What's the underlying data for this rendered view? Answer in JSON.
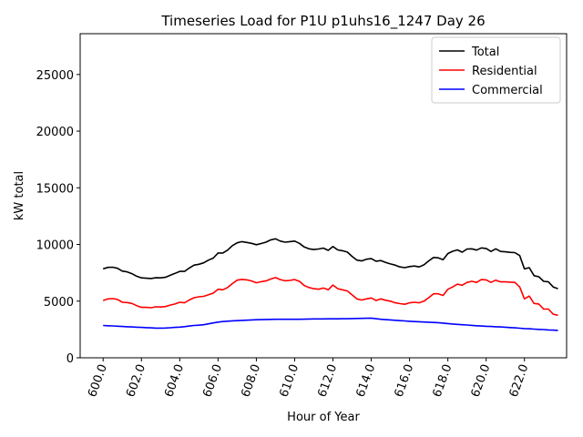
{
  "chart_data": {
    "type": "line",
    "title": "Timeseries Load for P1U p1uhs16_1247  Day 26",
    "xlabel": "Hour of Year",
    "ylabel": "kW total",
    "xlim": [
      598.8,
      624.2
    ],
    "ylim": [
      0,
      28600
    ],
    "xticks": [
      600,
      602,
      604,
      606,
      608,
      610,
      612,
      614,
      616,
      618,
      620,
      622
    ],
    "xtick_labels": [
      "600.0",
      "602.0",
      "604.0",
      "606.0",
      "608.0",
      "610.0",
      "612.0",
      "614.0",
      "616.0",
      "618.0",
      "620.0",
      "622.0"
    ],
    "yticks": [
      0,
      5000,
      10000,
      15000,
      20000,
      25000
    ],
    "ytick_labels": [
      "0",
      "5000",
      "10000",
      "15000",
      "20000",
      "25000"
    ],
    "legend_position": "top-right",
    "x_start": 600,
    "x_step": 0.25,
    "series": [
      {
        "name": "Total",
        "color": "#000000",
        "values": [
          7850,
          7980,
          7990,
          7900,
          7650,
          7580,
          7420,
          7200,
          7050,
          7020,
          7000,
          7060,
          7050,
          7100,
          7280,
          7450,
          7620,
          7620,
          7920,
          8180,
          8250,
          8380,
          8620,
          8800,
          9250,
          9250,
          9500,
          9900,
          10150,
          10250,
          10180,
          10100,
          9980,
          10080,
          10200,
          10400,
          10500,
          10300,
          10200,
          10250,
          10300,
          10100,
          9780,
          9620,
          9550,
          9600,
          9680,
          9480,
          9820,
          9520,
          9450,
          9330,
          8950,
          8620,
          8550,
          8700,
          8750,
          8520,
          8580,
          8420,
          8280,
          8180,
          8020,
          7950,
          8050,
          8100,
          8020,
          8200,
          8550,
          8850,
          8820,
          8650,
          9200,
          9400,
          9520,
          9320,
          9600,
          9620,
          9500,
          9700,
          9650,
          9380,
          9620,
          9380,
          9350,
          9300,
          9280,
          9020,
          7850,
          7950,
          7250,
          7150,
          6750,
          6700,
          6250,
          6100
        ]
      },
      {
        "name": "Residential",
        "color": "#ff0000",
        "values": [
          5050,
          5200,
          5220,
          5150,
          4900,
          4880,
          4800,
          4600,
          4450,
          4450,
          4420,
          4500,
          4480,
          4520,
          4650,
          4750,
          4900,
          4850,
          5100,
          5300,
          5380,
          5420,
          5560,
          5700,
          6050,
          6000,
          6200,
          6550,
          6850,
          6920,
          6880,
          6780,
          6620,
          6720,
          6780,
          6950,
          7080,
          6900,
          6800,
          6830,
          6900,
          6750,
          6380,
          6200,
          6100,
          6050,
          6150,
          6000,
          6420,
          6100,
          6000,
          5900,
          5550,
          5200,
          5100,
          5200,
          5280,
          5050,
          5200,
          5080,
          5000,
          4850,
          4780,
          4720,
          4850,
          4900,
          4850,
          5000,
          5300,
          5650,
          5650,
          5500,
          6050,
          6250,
          6500,
          6400,
          6650,
          6750,
          6650,
          6900,
          6880,
          6650,
          6850,
          6700,
          6700,
          6680,
          6650,
          6250,
          5200,
          5450,
          4800,
          4750,
          4300,
          4300,
          3850,
          3750
        ]
      },
      {
        "name": "Commercial",
        "color": "#0000ff",
        "values": [
          2850,
          2830,
          2810,
          2790,
          2760,
          2740,
          2720,
          2700,
          2680,
          2660,
          2640,
          2620,
          2620,
          2630,
          2650,
          2680,
          2710,
          2750,
          2800,
          2850,
          2880,
          2920,
          3000,
          3080,
          3150,
          3200,
          3230,
          3260,
          3280,
          3300,
          3320,
          3340,
          3360,
          3370,
          3380,
          3390,
          3400,
          3400,
          3400,
          3400,
          3400,
          3400,
          3410,
          3420,
          3430,
          3430,
          3430,
          3440,
          3440,
          3440,
          3450,
          3450,
          3460,
          3470,
          3480,
          3490,
          3500,
          3450,
          3400,
          3370,
          3340,
          3310,
          3280,
          3250,
          3220,
          3200,
          3180,
          3160,
          3140,
          3120,
          3100,
          3060,
          3020,
          2980,
          2950,
          2920,
          2890,
          2860,
          2830,
          2800,
          2780,
          2760,
          2740,
          2720,
          2700,
          2670,
          2640,
          2610,
          2580,
          2560,
          2530,
          2510,
          2490,
          2460,
          2440,
          2420
        ]
      }
    ]
  }
}
